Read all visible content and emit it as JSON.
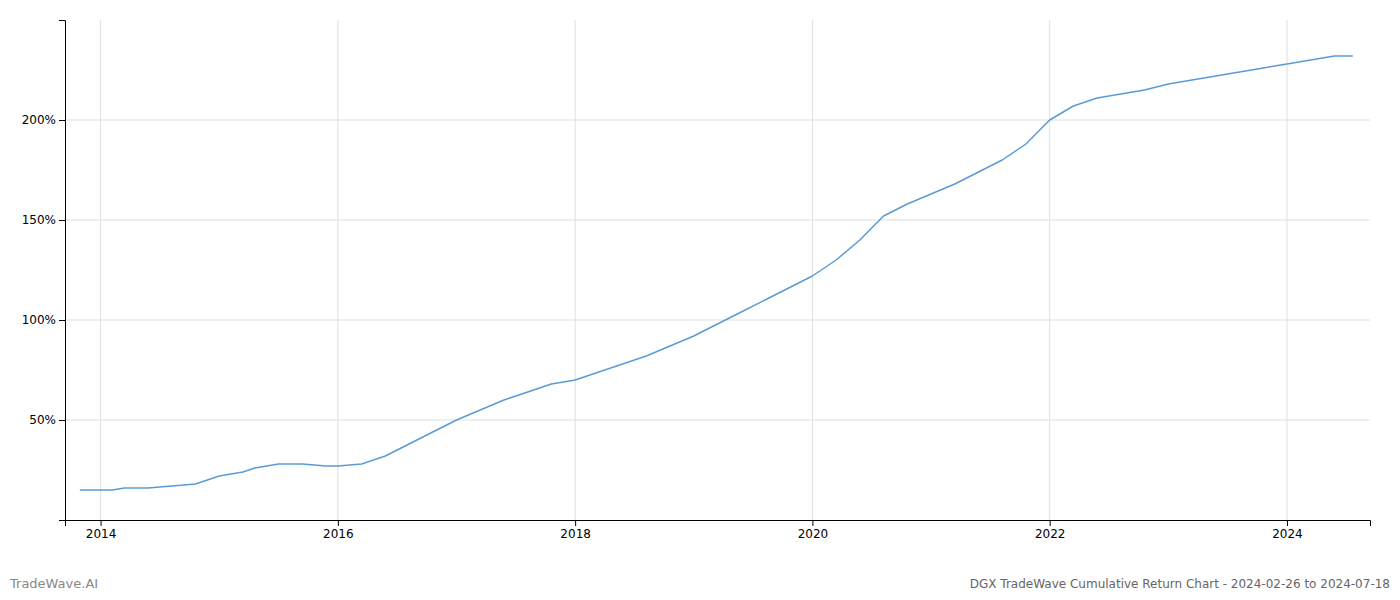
{
  "chart_data": {
    "type": "line",
    "title": "DGX TradeWave Cumulative Return Chart - 2024-02-26 to 2024-07-18",
    "annotations": [
      "TradeWave.AI"
    ],
    "color": "#5b9bd5",
    "grid": true,
    "x": [
      2013.83,
      2014.0,
      2014.1,
      2014.2,
      2014.4,
      2014.6,
      2014.8,
      2015.0,
      2015.1,
      2015.2,
      2015.3,
      2015.5,
      2015.7,
      2015.9,
      2016.0,
      2016.2,
      2016.4,
      2016.6,
      2016.8,
      2017.0,
      2017.2,
      2017.4,
      2017.6,
      2017.8,
      2018.0,
      2018.2,
      2018.4,
      2018.6,
      2018.8,
      2019.0,
      2019.2,
      2019.4,
      2019.6,
      2019.8,
      2020.0,
      2020.2,
      2020.4,
      2020.6,
      2020.8,
      2021.0,
      2021.2,
      2021.4,
      2021.6,
      2021.8,
      2022.0,
      2022.2,
      2022.4,
      2022.6,
      2022.8,
      2023.0,
      2023.2,
      2023.4,
      2023.6,
      2023.8,
      2024.0,
      2024.2,
      2024.4,
      2024.55
    ],
    "values": [
      15,
      15,
      15,
      16,
      16,
      17,
      18,
      22,
      23,
      24,
      26,
      28,
      28,
      27,
      27,
      28,
      32,
      38,
      44,
      50,
      55,
      60,
      64,
      68,
      70,
      74,
      78,
      82,
      87,
      92,
      98,
      104,
      110,
      116,
      122,
      130,
      140,
      152,
      158,
      163,
      168,
      174,
      180,
      188,
      200,
      207,
      211,
      213,
      215,
      218,
      220,
      222,
      224,
      226,
      228,
      230,
      232,
      232
    ],
    "xlim": [
      2013.7,
      2024.7
    ],
    "ylim": [
      0,
      250
    ],
    "xticks": [
      2014,
      2016,
      2018,
      2020,
      2022,
      2024
    ],
    "yticks": [
      {
        "value": 50,
        "label": "50%"
      },
      {
        "value": 100,
        "label": "100%"
      },
      {
        "value": 150,
        "label": "150%"
      },
      {
        "value": 200,
        "label": "200%"
      }
    ]
  }
}
